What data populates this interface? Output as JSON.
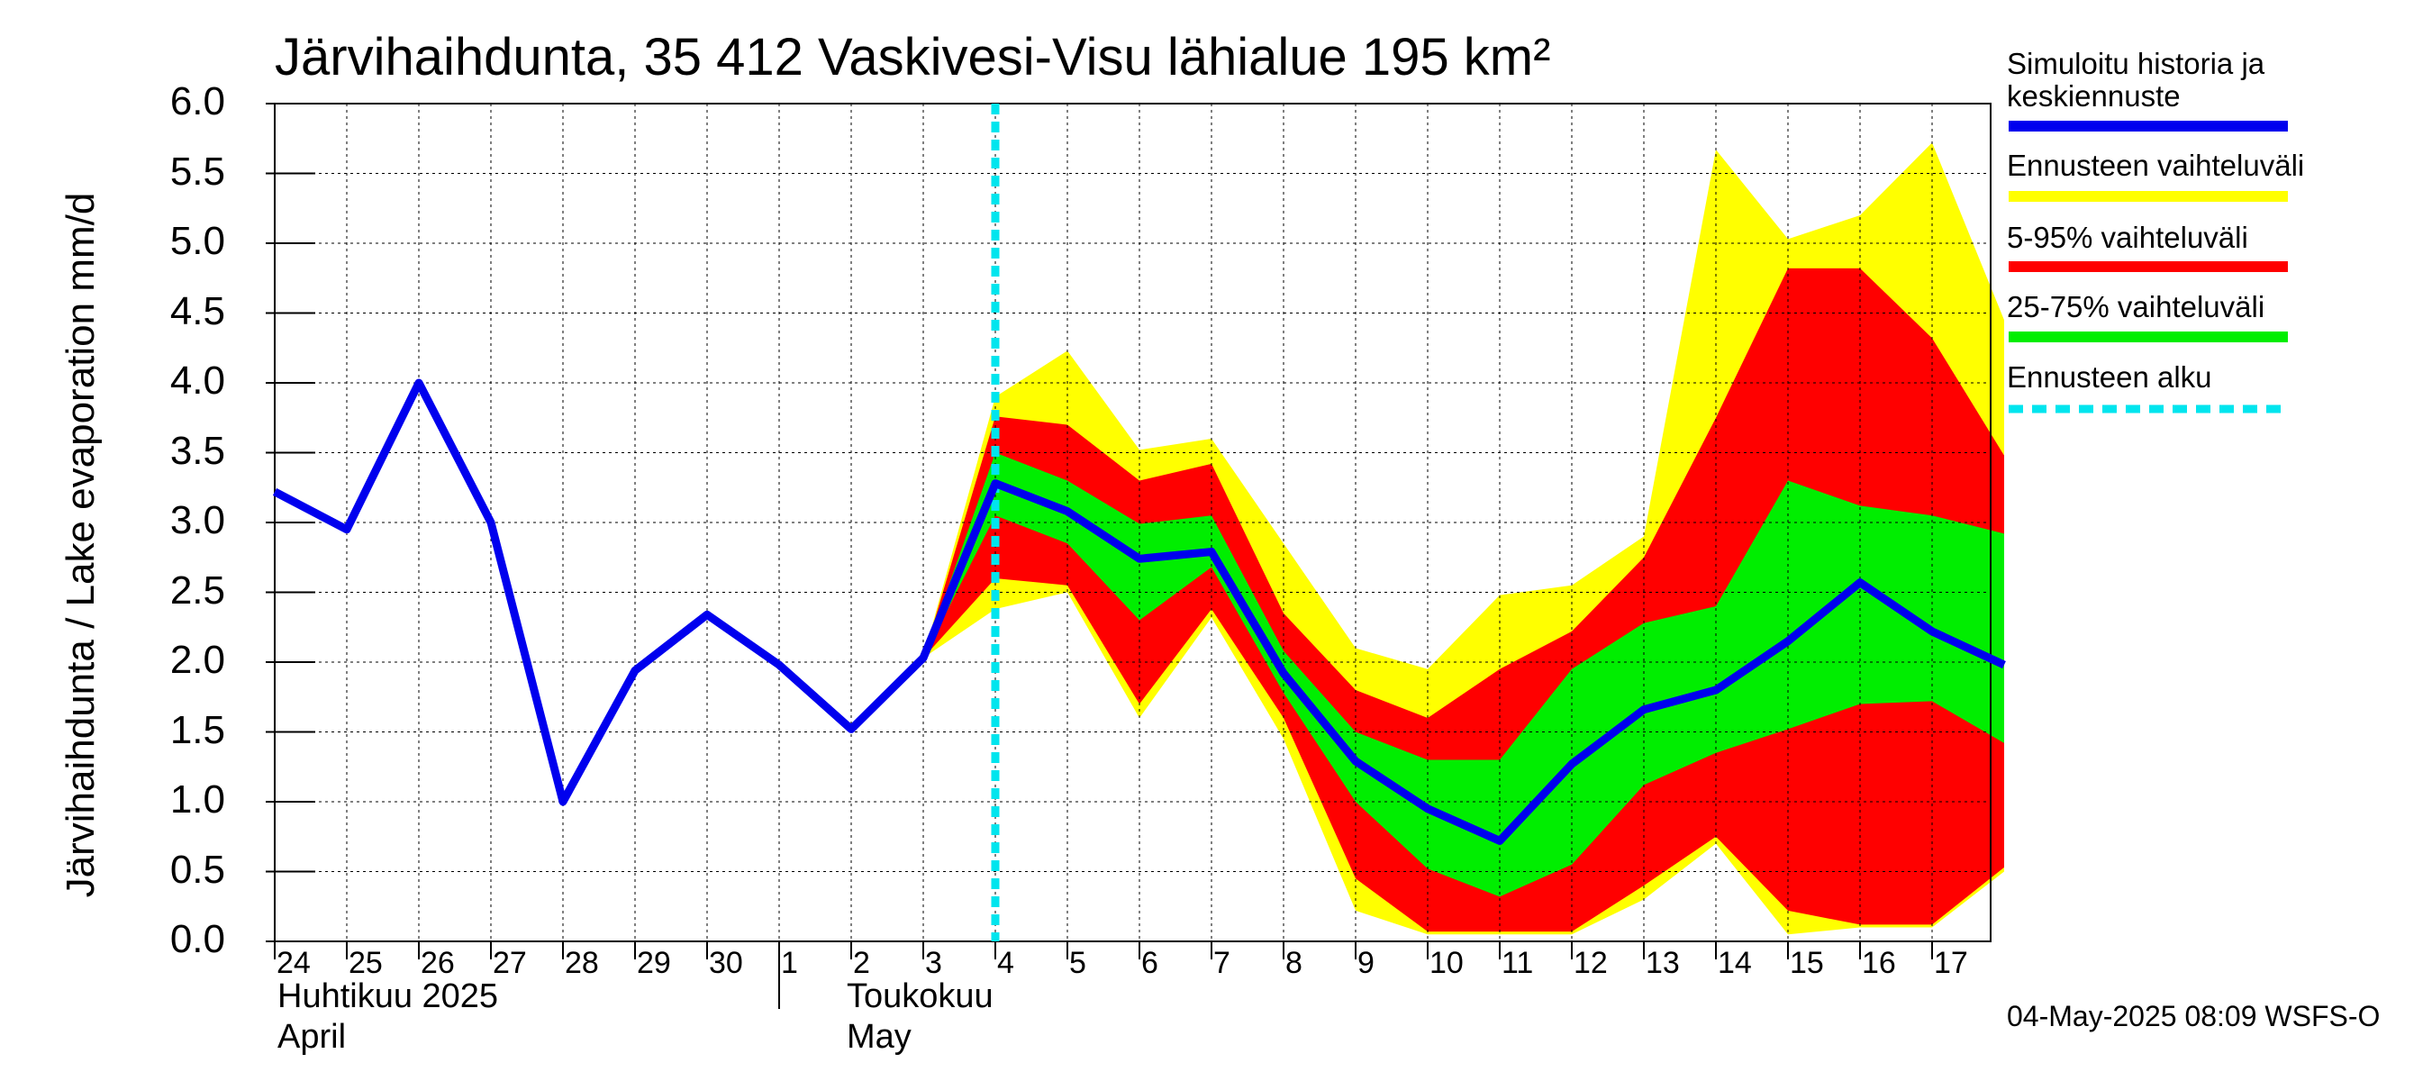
{
  "chart_data": {
    "type": "area",
    "title": "Järvihaihdunta, 35 412 Vaskivesi-Visu lähialue 195 km²",
    "ylabel": "Järvihaihdunta / Lake evaporation   mm/d",
    "ylim": [
      0,
      6
    ],
    "yticks": [
      "0.0",
      "0.5",
      "1.0",
      "1.5",
      "2.0",
      "2.5",
      "3.0",
      "3.5",
      "4.0",
      "4.5",
      "5.0",
      "5.5",
      "6.0"
    ],
    "x_day_labels": [
      "24",
      "25",
      "26",
      "27",
      "28",
      "29",
      "30",
      "1",
      "2",
      "3",
      "4",
      "5",
      "6",
      "7",
      "8",
      "9",
      "10",
      "11",
      "12",
      "13",
      "14",
      "15",
      "16",
      "17"
    ],
    "month_labels": {
      "april_fi": "Huhtikuu  2025",
      "april_en": "April",
      "may_fi": "Toukokuu",
      "may_en": "May"
    },
    "grid": true,
    "forecast_start": "2025-05-04",
    "series": [
      {
        "name": "Simuloitu historia ja keskiennuste",
        "color": "#0000ee",
        "x": [
          "2025-04-24",
          "2025-04-25",
          "2025-04-26",
          "2025-04-27",
          "2025-04-28",
          "2025-04-29",
          "2025-04-30",
          "2025-05-01",
          "2025-05-02",
          "2025-05-03",
          "2025-05-04",
          "2025-05-05",
          "2025-05-06",
          "2025-05-07",
          "2025-05-08",
          "2025-05-09",
          "2025-05-10",
          "2025-05-11",
          "2025-05-12",
          "2025-05-13",
          "2025-05-14",
          "2025-05-15",
          "2025-05-16",
          "2025-05-17",
          "2025-05-18"
        ],
        "values": [
          3.22,
          2.95,
          4.0,
          3.0,
          1.0,
          1.94,
          2.34,
          1.98,
          1.52,
          2.03,
          3.28,
          3.08,
          2.74,
          2.79,
          1.92,
          1.29,
          0.95,
          0.72,
          1.27,
          1.66,
          1.8,
          2.15,
          2.57,
          2.22,
          1.98
        ]
      }
    ],
    "bands": [
      {
        "name": "Ennusteen vaihteluväli",
        "color": "#ffff00",
        "x": [
          "2025-05-03",
          "2025-05-04",
          "2025-05-05",
          "2025-05-06",
          "2025-05-07",
          "2025-05-08",
          "2025-05-09",
          "2025-05-10",
          "2025-05-11",
          "2025-05-12",
          "2025-05-13",
          "2025-05-14",
          "2025-05-15",
          "2025-05-16",
          "2025-05-17",
          "2025-05-18"
        ],
        "upper": [
          2.03,
          3.9,
          4.23,
          3.52,
          3.6,
          2.85,
          2.1,
          1.95,
          2.48,
          2.55,
          2.9,
          5.67,
          5.03,
          5.2,
          5.72,
          4.45
        ],
        "lower": [
          2.03,
          2.38,
          2.5,
          1.6,
          2.32,
          1.45,
          0.22,
          0.05,
          0.05,
          0.05,
          0.3,
          0.7,
          0.05,
          0.1,
          0.1,
          0.5
        ]
      },
      {
        "name": "5-95% vaihteluväli",
        "color": "#ff0000",
        "x": [
          "2025-05-03",
          "2025-05-04",
          "2025-05-05",
          "2025-05-06",
          "2025-05-07",
          "2025-05-08",
          "2025-05-09",
          "2025-05-10",
          "2025-05-11",
          "2025-05-12",
          "2025-05-13",
          "2025-05-14",
          "2025-05-15",
          "2025-05-16",
          "2025-05-17",
          "2025-05-18"
        ],
        "upper": [
          2.03,
          3.76,
          3.7,
          3.3,
          3.42,
          2.35,
          1.8,
          1.6,
          1.95,
          2.22,
          2.75,
          3.75,
          4.82,
          4.82,
          4.32,
          3.48
        ],
        "lower": [
          2.03,
          2.6,
          2.55,
          1.7,
          2.38,
          1.6,
          0.45,
          0.07,
          0.07,
          0.07,
          0.4,
          0.75,
          0.22,
          0.12,
          0.12,
          0.53
        ]
      },
      {
        "name": "25-75% vaihteluväli",
        "color": "#00ee00",
        "x": [
          "2025-05-03",
          "2025-05-04",
          "2025-05-05",
          "2025-05-06",
          "2025-05-07",
          "2025-05-08",
          "2025-05-09",
          "2025-05-10",
          "2025-05-11",
          "2025-05-12",
          "2025-05-13",
          "2025-05-14",
          "2025-05-15",
          "2025-05-16",
          "2025-05-17",
          "2025-05-18"
        ],
        "upper": [
          2.03,
          3.5,
          3.3,
          2.99,
          3.05,
          2.08,
          1.5,
          1.3,
          1.3,
          1.95,
          2.28,
          2.4,
          3.3,
          3.12,
          3.05,
          2.92
        ],
        "lower": [
          2.03,
          3.05,
          2.85,
          2.3,
          2.68,
          1.78,
          1.0,
          0.52,
          0.32,
          0.55,
          1.12,
          1.35,
          1.52,
          1.7,
          1.72,
          1.42
        ]
      }
    ]
  },
  "legend": {
    "items": [
      {
        "label_line1": "Simuloitu historia ja",
        "label_line2": "keskiennuste",
        "color": "#0000ee",
        "style": "solid"
      },
      {
        "label_line1": "Ennusteen vaihteluväli",
        "color": "#ffff00",
        "style": "solid"
      },
      {
        "label_line1": "5-95% vaihteluväli",
        "color": "#ff0000",
        "style": "solid"
      },
      {
        "label_line1": "25-75% vaihteluväli",
        "color": "#00ee00",
        "style": "solid"
      },
      {
        "label_line1": "Ennusteen alku",
        "color": "#00e5ee",
        "style": "dashed"
      }
    ]
  },
  "footer": "04-May-2025 08:09 WSFS-O"
}
